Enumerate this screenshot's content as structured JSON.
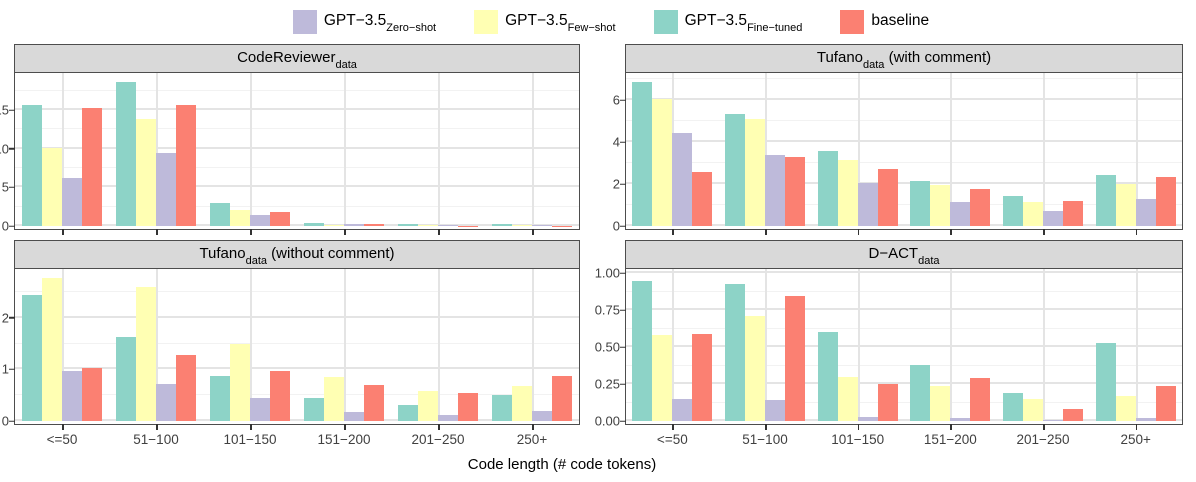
{
  "legend": {
    "items": [
      {
        "main": "GPT−3.5",
        "sub": "Zero−shot",
        "color": "#BEBADA"
      },
      {
        "main": "GPT−3.5",
        "sub": "Few−shot",
        "color": "#FFFFB3"
      },
      {
        "main": "GPT−3.5",
        "sub": "Fine−tuned",
        "color": "#8DD3C7"
      },
      {
        "main": "baseline",
        "sub": "",
        "color": "#FB8072"
      }
    ]
  },
  "colors": {
    "strip_bg": "#D9D9D9",
    "panel_border": "#4D4D4D",
    "grid_major": "#E4E4E4",
    "grid_minor": "#F2F2F2",
    "zero_shot": "#BEBADA",
    "few_shot": "#FFFFB3",
    "fine_tuned": "#8DD3C7",
    "baseline": "#FB8072"
  },
  "chart_data": {
    "type": "bar",
    "layout": "2x2 facets, grouped bars, shared x axis",
    "categories": [
      "<=50",
      "51−100",
      "101−150",
      "151−200",
      "201−250",
      "250+"
    ],
    "xlabel": "Code length (# code tokens)",
    "legend_order": [
      "GPT−3.5 Zero−shot",
      "GPT−3.5 Few−shot",
      "GPT−3.5 Fine−tuned",
      "baseline"
    ],
    "bar_order_within_group": [
      "GPT−3.5 Fine−tuned",
      "GPT−3.5 Few−shot",
      "GPT−3.5 Zero−shot",
      "baseline"
    ],
    "panels": [
      {
        "strip": {
          "main": "CodeReviewer",
          "sub": "data",
          "suffix": ""
        },
        "ylim": [
          0,
          19.8
        ],
        "ytick_values": [
          0,
          5,
          10,
          15
        ],
        "ytick_labels": [
          "0",
          "5",
          "10",
          "15"
        ],
        "show_xlabels": false,
        "series": [
          {
            "name": "GPT−3.5 Fine−tuned",
            "color": "#8DD3C7",
            "values": [
              15.6,
              18.6,
              3.0,
              0.4,
              0.2,
              0.2
            ]
          },
          {
            "name": "GPT−3.5 Few−shot",
            "color": "#FFFFB3",
            "values": [
              10.1,
              13.8,
              2.1,
              0.16,
              0.08,
              0.1
            ]
          },
          {
            "name": "GPT−3.5 Zero−shot",
            "color": "#BEBADA",
            "values": [
              6.2,
              9.5,
              1.4,
              0.25,
              0.17,
              0.12
            ]
          },
          {
            "name": "baseline",
            "color": "#FB8072",
            "values": [
              15.3,
              15.7,
              1.85,
              0.2,
              0.05,
              0.04
            ]
          }
        ]
      },
      {
        "strip": {
          "main": "Tufano",
          "sub": "data",
          "suffix": " (with comment)"
        },
        "ylim": [
          0,
          7.3
        ],
        "ytick_values": [
          0,
          2,
          4,
          6
        ],
        "ytick_labels": [
          "0",
          "2",
          "4",
          "6"
        ],
        "show_xlabels": false,
        "series": [
          {
            "name": "GPT−3.5 Fine−tuned",
            "color": "#8DD3C7",
            "values": [
              6.85,
              5.35,
              3.6,
              2.15,
              1.45,
              2.45
            ]
          },
          {
            "name": "GPT−3.5 Few−shot",
            "color": "#FFFFB3",
            "values": [
              6.05,
              5.1,
              3.15,
              1.95,
              1.15,
              2.0
            ]
          },
          {
            "name": "GPT−3.5 Zero−shot",
            "color": "#BEBADA",
            "values": [
              4.45,
              3.4,
              2.05,
              1.15,
              0.7,
              1.3
            ]
          },
          {
            "name": "baseline",
            "color": "#FB8072",
            "values": [
              2.6,
              3.3,
              2.7,
              1.75,
              1.2,
              2.35
            ]
          }
        ]
      },
      {
        "strip": {
          "main": "Tufano",
          "sub": "data",
          "suffix": " (without comment)"
        },
        "ylim": [
          0,
          2.95
        ],
        "ytick_values": [
          0,
          1,
          2
        ],
        "ytick_labels": [
          "0",
          "1",
          "2"
        ],
        "show_xlabels": true,
        "series": [
          {
            "name": "GPT−3.5 Fine−tuned",
            "color": "#8DD3C7",
            "values": [
              2.45,
              1.63,
              0.87,
              0.45,
              0.32,
              0.5
            ]
          },
          {
            "name": "GPT−3.5 Few−shot",
            "color": "#FFFFB3",
            "values": [
              2.77,
              2.6,
              1.5,
              0.85,
              0.58,
              0.68
            ]
          },
          {
            "name": "GPT−3.5 Zero−shot",
            "color": "#BEBADA",
            "values": [
              0.98,
              0.72,
              0.45,
              0.18,
              0.12,
              0.2
            ]
          },
          {
            "name": "baseline",
            "color": "#FB8072",
            "values": [
              1.02,
              1.28,
              0.98,
              0.7,
              0.55,
              0.87
            ]
          }
        ]
      },
      {
        "strip": {
          "main": "D−ACT",
          "sub": "data",
          "suffix": ""
        },
        "ylim": [
          0,
          1.03
        ],
        "ytick_values": [
          0,
          0.25,
          0.5,
          0.75,
          1.0
        ],
        "ytick_labels": [
          "0.00",
          "0.25",
          "0.50",
          "0.75",
          "1.00"
        ],
        "show_xlabels": true,
        "series": [
          {
            "name": "GPT−3.5 Fine−tuned",
            "color": "#8DD3C7",
            "values": [
              0.95,
              0.93,
              0.6,
              0.38,
              0.19,
              0.53
            ]
          },
          {
            "name": "GPT−3.5 Few−shot",
            "color": "#FFFFB3",
            "values": [
              0.58,
              0.71,
              0.3,
              0.24,
              0.15,
              0.17
            ]
          },
          {
            "name": "GPT−3.5 Zero−shot",
            "color": "#BEBADA",
            "values": [
              0.15,
              0.14,
              0.03,
              0.02,
              0.01,
              0.02
            ]
          },
          {
            "name": "baseline",
            "color": "#FB8072",
            "values": [
              0.59,
              0.85,
              0.25,
              0.29,
              0.08,
              0.24
            ]
          }
        ]
      }
    ]
  }
}
